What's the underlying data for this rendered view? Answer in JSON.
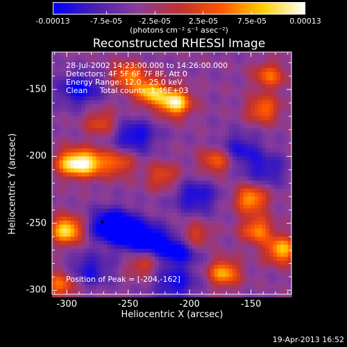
{
  "colorbar": {
    "tick_labels": [
      "-0.00013",
      "-7.5e-05",
      "-2.5e-05",
      "2.5e-05",
      "7.5e-05",
      "0.00013"
    ],
    "tick_values": [
      -0.00013,
      -7.5e-05,
      -2.5e-05,
      2.5e-05,
      7.5e-05,
      0.00013
    ],
    "units": "(photons cm⁻² s⁻¹ asec⁻²)",
    "colors": [
      "#0000ff",
      "#4a20b0",
      "#8a3d9a",
      "#c03030",
      "#ff5500",
      "#ffd000",
      "#ffffff"
    ]
  },
  "chart_data": {
    "type": "heatmap",
    "title": "Reconstructed RHESSI Image",
    "xlabel": "Heliocentric X (arcsec)",
    "ylabel": "Heliocentric Y (arcsec)",
    "xlim": [
      -312,
      -117
    ],
    "ylim": [
      -303,
      -122
    ],
    "x_ticks": [
      -300,
      -250,
      -200,
      -150
    ],
    "x_tick_labels": [
      "-300",
      "-250",
      "-200",
      "-150"
    ],
    "y_ticks": [
      -300,
      -250,
      -200,
      -150
    ],
    "y_tick_labels": [
      "-300",
      "-250",
      "-200",
      "-150"
    ],
    "peak": [
      -204,
      -162
    ],
    "marker": [
      -271,
      -249
    ],
    "info_lines": [
      "28-Jul-2002 14:23:00.000 to 14:26:00.000",
      "Detectors: 4F 5F 6F 7F 8F, Att 0",
      "Energy Range: 12.0 - 25.0 keV",
      "Clean     Total counts: 1.46E+03"
    ],
    "peak_text": "Position of Peak = [-204,-162]",
    "bright_sources": [
      {
        "x": -212,
        "y": -160,
        "level": 1.0
      },
      {
        "x": -232,
        "y": -152,
        "level": 0.8
      },
      {
        "x": -250,
        "y": -140,
        "level": 0.65
      },
      {
        "x": -296,
        "y": -205,
        "level": 0.9
      },
      {
        "x": -300,
        "y": -255,
        "level": 0.95
      },
      {
        "x": -280,
        "y": -205,
        "level": 0.75
      },
      {
        "x": -178,
        "y": -203,
        "level": 0.6
      },
      {
        "x": -150,
        "y": -232,
        "level": 0.75
      },
      {
        "x": -145,
        "y": -255,
        "level": 0.65
      },
      {
        "x": -125,
        "y": -270,
        "level": 0.8
      },
      {
        "x": -172,
        "y": -287,
        "level": 0.75
      },
      {
        "x": -140,
        "y": -165,
        "level": 0.6
      },
      {
        "x": -135,
        "y": -140,
        "level": 0.55
      },
      {
        "x": -258,
        "y": -205,
        "level": 0.5
      },
      {
        "x": -222,
        "y": -215,
        "level": 0.45
      },
      {
        "x": -238,
        "y": -280,
        "level": 0.45
      },
      {
        "x": -196,
        "y": -260,
        "level": 0.5
      },
      {
        "x": -272,
        "y": -175,
        "level": 0.45
      },
      {
        "x": -305,
        "y": -295,
        "level": 0.6
      }
    ],
    "dark_sources": [
      {
        "x": -262,
        "y": -252,
        "level": 1.0
      },
      {
        "x": -238,
        "y": -262,
        "level": 0.85
      },
      {
        "x": -210,
        "y": -270,
        "level": 0.7
      },
      {
        "x": -290,
        "y": -150,
        "level": 0.6
      },
      {
        "x": -195,
        "y": -230,
        "level": 0.55
      },
      {
        "x": -245,
        "y": -185,
        "level": 0.6
      },
      {
        "x": -160,
        "y": -195,
        "level": 0.5
      },
      {
        "x": -138,
        "y": -210,
        "level": 0.45
      },
      {
        "x": -282,
        "y": -285,
        "level": 0.5
      },
      {
        "x": -212,
        "y": -295,
        "level": 0.55
      }
    ]
  },
  "footer": {
    "date": "19-Apr-2013 16:52"
  }
}
